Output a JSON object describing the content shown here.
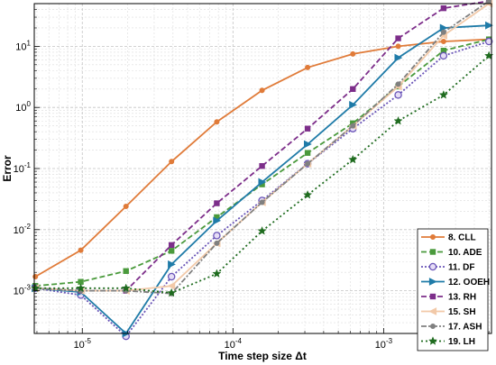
{
  "chart_data": {
    "type": "line",
    "xlabel": "Time step size Δt",
    "ylabel": "Error",
    "x_scale": "log",
    "y_scale": "log",
    "xlim": [
      4.8e-06,
      0.0052
    ],
    "ylim": [
      0.0002,
      50
    ],
    "grid": true,
    "minor_grid": true,
    "legend_position": "bottom-right",
    "x_ticks": [
      {
        "value": 1e-05,
        "base": "10",
        "exp": "-5"
      },
      {
        "value": 0.0001,
        "base": "10",
        "exp": "-4"
      },
      {
        "value": 0.001,
        "base": "10",
        "exp": "-3"
      }
    ],
    "y_ticks": [
      {
        "value": 0.001,
        "base": "10",
        "exp": "-3"
      },
      {
        "value": 0.01,
        "base": "10",
        "exp": "-2"
      },
      {
        "value": 0.1,
        "base": "10",
        "exp": "-1"
      },
      {
        "value": 1,
        "base": "10",
        "exp": "0"
      },
      {
        "value": 10,
        "base": "10",
        "exp": "1"
      }
    ],
    "x": [
      4.88e-06,
      9.77e-06,
      1.95e-05,
      3.91e-05,
      7.81e-05,
      0.000156,
      0.000313,
      0.000625,
      0.00125,
      0.0025,
      0.005
    ],
    "series": [
      {
        "name": "8. CLL",
        "color": "#e07b39",
        "marker": "dot",
        "dash": "",
        "values": [
          0.0017,
          0.0046,
          0.024,
          0.13,
          0.58,
          1.9,
          4.5,
          7.5,
          10,
          12,
          13
        ]
      },
      {
        "name": "10. ADE",
        "color": "#4a9a3c",
        "marker": "square",
        "dash": "6,3",
        "values": [
          0.0012,
          0.0014,
          0.0021,
          0.0045,
          0.016,
          0.055,
          0.18,
          0.55,
          2.2,
          8.5,
          13
        ]
      },
      {
        "name": "11. DF",
        "color": "#6a55b8",
        "marker": "circle",
        "dash": "2,2",
        "values": [
          0.0011,
          0.00085,
          0.00018,
          0.0017,
          0.008,
          0.03,
          0.12,
          0.45,
          1.6,
          7,
          12
        ]
      },
      {
        "name": "12. OOEH",
        "color": "#1f7ba8",
        "marker": "triangle-right",
        "dash": "",
        "values": [
          0.0011,
          0.00095,
          0.0002,
          0.0027,
          0.014,
          0.06,
          0.25,
          1.1,
          6.5,
          20,
          22
        ]
      },
      {
        "name": "13. RH",
        "color": "#7d2e8a",
        "marker": "square",
        "dash": "6,3",
        "values": [
          0.0011,
          0.001,
          0.001,
          0.0056,
          0.027,
          0.11,
          0.45,
          2,
          13.5,
          42,
          55
        ]
      },
      {
        "name": "15. SH",
        "color": "#f2c9a8",
        "marker": "triangle-left",
        "dash": "",
        "values": [
          0.0011,
          0.001,
          0.001,
          0.0012,
          0.006,
          0.028,
          0.12,
          0.5,
          2.2,
          15,
          50
        ]
      },
      {
        "name": "17. ASH",
        "color": "#808080",
        "marker": "dot",
        "dash": "6,2,2,2",
        "values": [
          0.0011,
          0.001,
          0.001,
          0.0009,
          0.006,
          0.028,
          0.12,
          0.5,
          2.4,
          17,
          55
        ]
      },
      {
        "name": "19. LH",
        "color": "#1e6b1e",
        "marker": "star",
        "dash": "2,3",
        "values": [
          0.0011,
          0.0011,
          0.0011,
          0.00092,
          0.0019,
          0.0095,
          0.037,
          0.14,
          0.6,
          1.6,
          7
        ]
      }
    ]
  }
}
